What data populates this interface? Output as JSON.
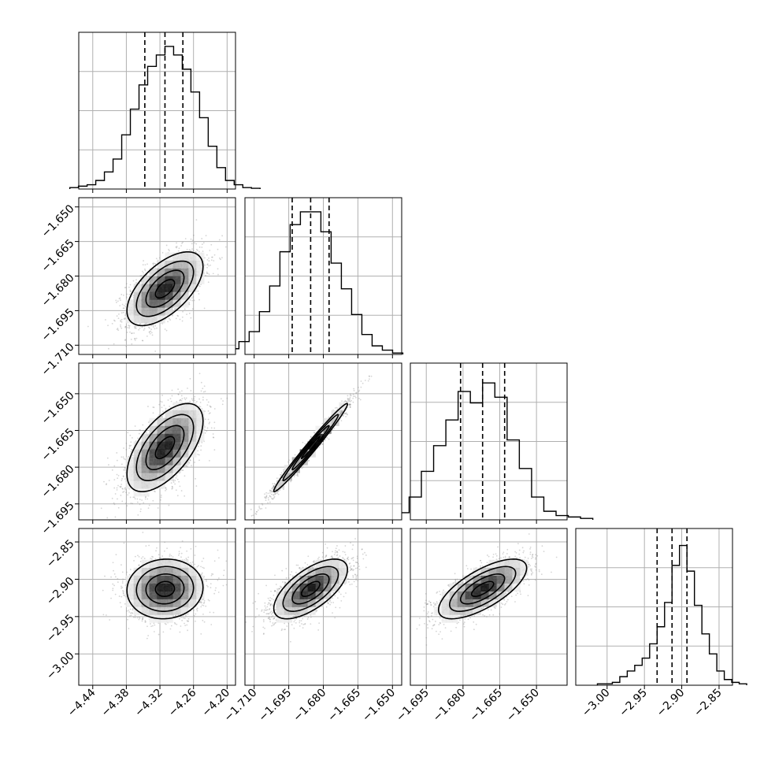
{
  "chart_data": {
    "type": "corner",
    "grid": true,
    "n_params": 4,
    "params": [
      {
        "ticks": [
          -4.44,
          -4.38,
          -4.32,
          -4.26,
          -4.2
        ],
        "tick_labels": [
          "−4.44",
          "−4.38",
          "−4.32",
          "−4.26",
          "−4.20"
        ],
        "range": [
          -4.465,
          -4.185
        ]
      },
      {
        "ticks": [
          -1.71,
          -1.695,
          -1.68,
          -1.665,
          -1.65
        ],
        "tick_labels": [
          "−1.710",
          "−1.695",
          "−1.680",
          "−1.665",
          "−1.650"
        ],
        "range": [
          -1.714,
          -1.646
        ]
      },
      {
        "ticks": [
          -1.695,
          -1.68,
          -1.665,
          -1.65
        ],
        "tick_labels": [
          "−1.695",
          "−1.680",
          "−1.665",
          "−1.650"
        ],
        "range": [
          -1.7015,
          -1.6375
        ]
      },
      {
        "ticks": [
          -3.0,
          -2.95,
          -2.9,
          -2.85
        ],
        "tick_labels": [
          "−3.00",
          "−2.95",
          "−2.90",
          "−2.85"
        ],
        "range": [
          -3.042,
          -2.832
        ]
      }
    ],
    "quantiles": [
      [
        -4.347,
        -4.311,
        -4.279
      ],
      [
        -1.6935,
        -1.6855,
        -1.6775
      ],
      [
        -1.681,
        -1.672,
        -1.663
      ],
      [
        -2.933,
        -2.913,
        -2.893
      ]
    ],
    "histograms": [
      {
        "peak_norm": [
          0.01,
          0.02,
          0.03,
          0.06,
          0.12,
          0.21,
          0.38,
          0.56,
          0.73,
          0.86,
          0.94,
          1.0,
          0.94,
          0.84,
          0.68,
          0.5,
          0.3,
          0.15,
          0.06,
          0.03,
          0.01,
          0.005
        ]
      },
      {
        "peak_norm": [
          0.02,
          0.04,
          0.09,
          0.16,
          0.3,
          0.48,
          0.72,
          0.91,
          1.0,
          1.0,
          0.86,
          0.64,
          0.46,
          0.28,
          0.14,
          0.06,
          0.03,
          0.01
        ]
      },
      {
        "peak_norm": [
          0.01,
          0.02,
          0.05,
          0.16,
          0.34,
          0.52,
          0.7,
          0.9,
          0.82,
          0.96,
          0.86,
          0.56,
          0.36,
          0.16,
          0.06,
          0.03,
          0.02,
          0.01
        ]
      },
      {
        "peak_norm": [
          0.01,
          0.01,
          0.02,
          0.06,
          0.1,
          0.14,
          0.19,
          0.29,
          0.41,
          0.58,
          0.84,
          0.98,
          0.8,
          0.56,
          0.36,
          0.22,
          0.1,
          0.04,
          0.02,
          0.01
        ]
      }
    ],
    "pairs": [
      {
        "i": 1,
        "j": 0,
        "rho": 0.6
      },
      {
        "i": 2,
        "j": 0,
        "rho": 0.6
      },
      {
        "i": 2,
        "j": 1,
        "rho": 0.985
      },
      {
        "i": 3,
        "j": 0,
        "rho": 0.05
      },
      {
        "i": 3,
        "j": 1,
        "rho": 0.65
      },
      {
        "i": 3,
        "j": 2,
        "rho": 0.7
      }
    ],
    "colors": {
      "line": "#000000",
      "grid": "#b0b0b0",
      "points": "#888888",
      "density_max": "#000000"
    }
  }
}
